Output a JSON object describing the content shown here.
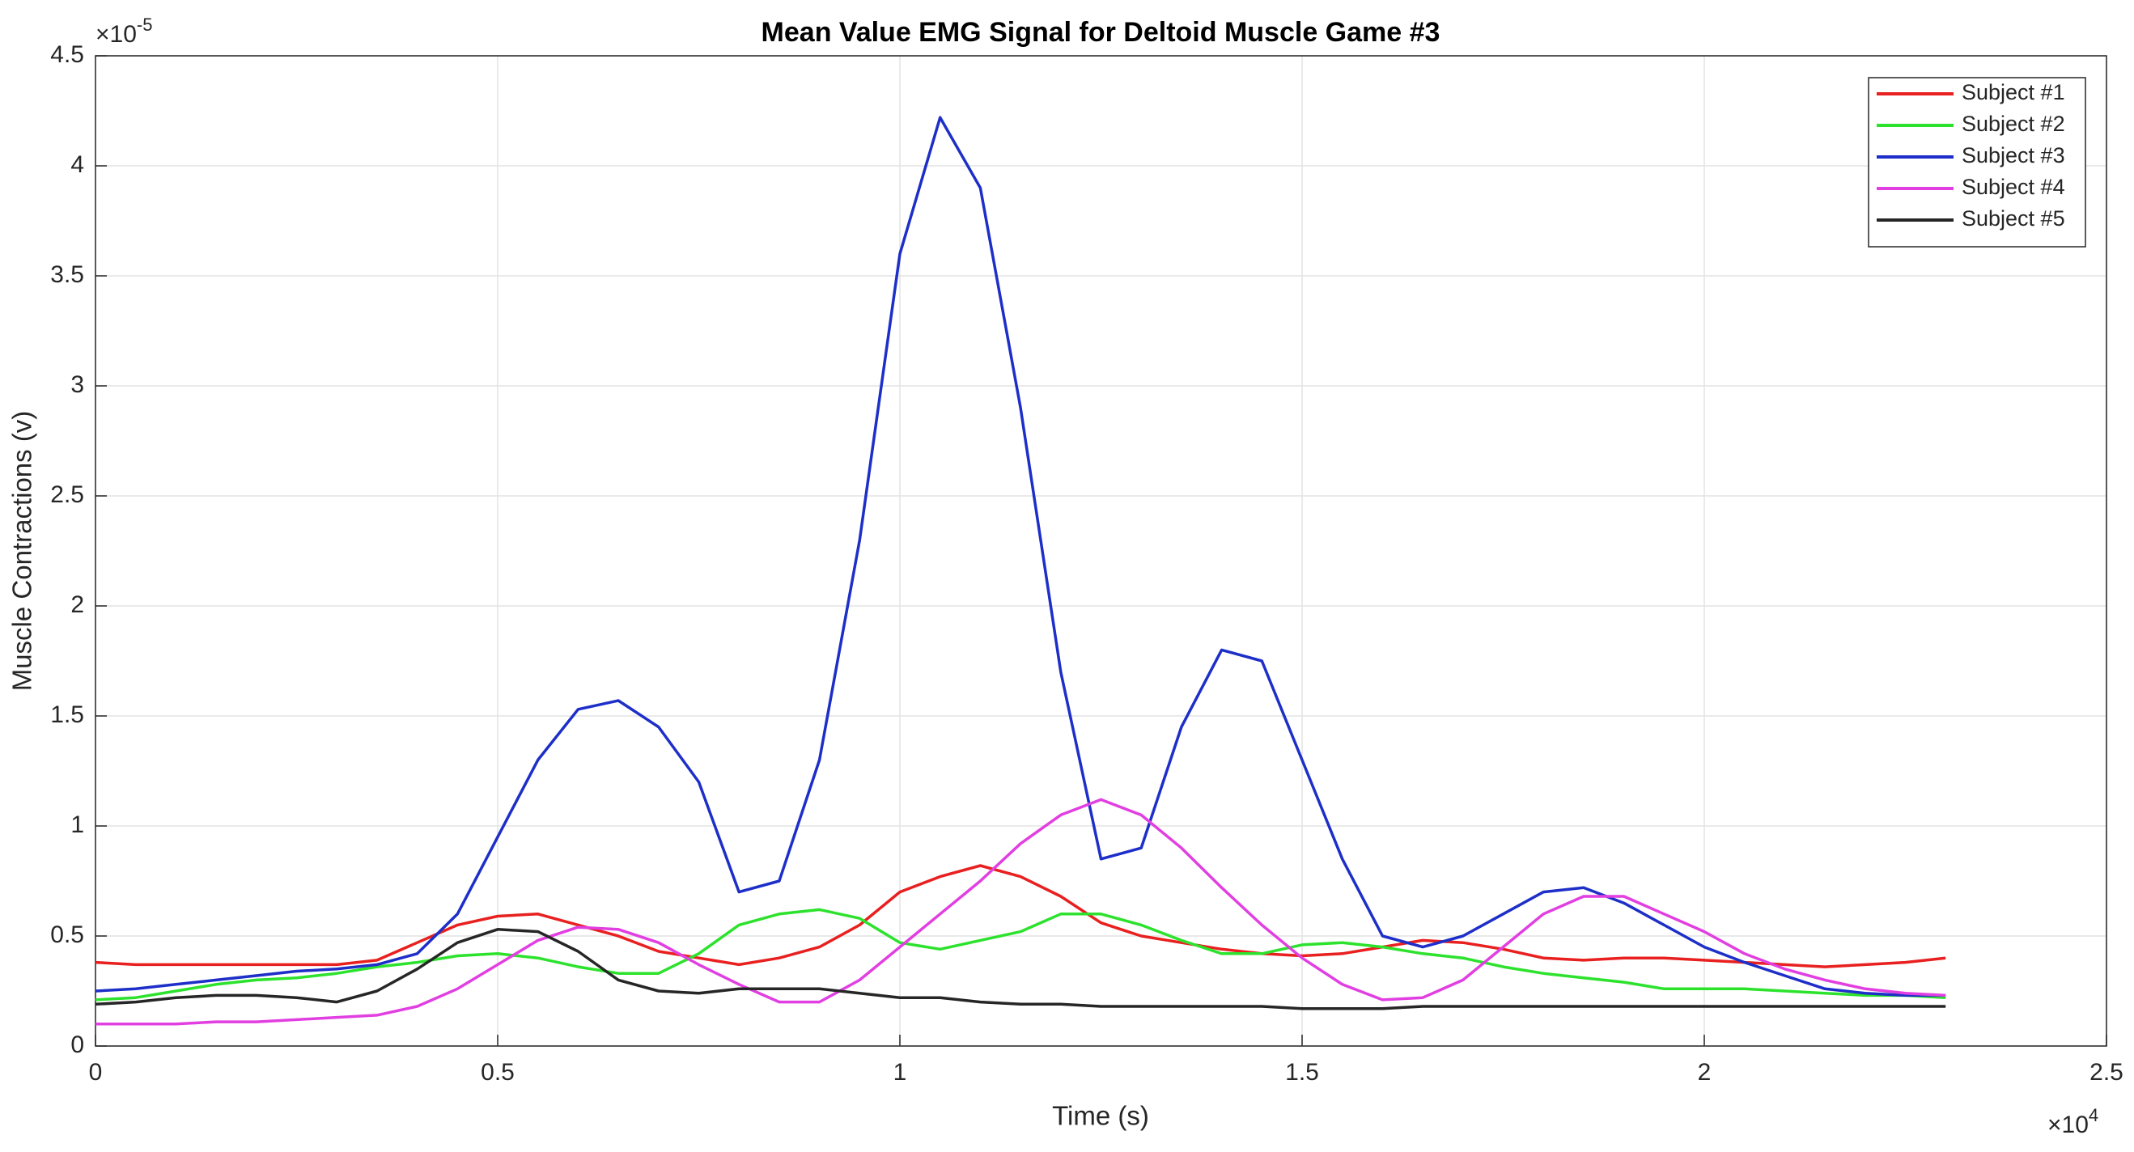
{
  "chart_data": {
    "type": "line",
    "title": "Mean Value EMG Signal for Deltoid Muscle Game #3",
    "x_label": "Time (s)",
    "y_label": "Muscle Contractions (v)",
    "x_multiplier": {
      "base": "×10",
      "exponent": "4"
    },
    "y_multiplier": {
      "base": "×10",
      "exponent": "-5"
    },
    "xlim": [
      0,
      2.5
    ],
    "ylim": [
      0,
      4.5
    ],
    "xticks": [
      0,
      0.5,
      1,
      1.5,
      2,
      2.5
    ],
    "yticks": [
      0,
      0.5,
      1,
      1.5,
      2,
      2.5,
      3,
      3.5,
      4,
      4.5
    ],
    "grid": true,
    "legend": "northeast",
    "x": [
      0,
      0.05,
      0.1,
      0.15,
      0.2,
      0.25,
      0.3,
      0.35,
      0.4,
      0.45,
      0.5,
      0.55,
      0.6,
      0.65,
      0.7,
      0.75,
      0.8,
      0.85,
      0.9,
      0.95,
      1.0,
      1.05,
      1.1,
      1.15,
      1.2,
      1.25,
      1.3,
      1.35,
      1.4,
      1.45,
      1.5,
      1.55,
      1.6,
      1.65,
      1.7,
      1.75,
      1.8,
      1.85,
      1.9,
      1.95,
      2.0,
      2.05,
      2.1,
      2.15,
      2.2,
      2.25,
      2.3
    ],
    "series": [
      {
        "name": "Subject #1",
        "color": "#e8201f",
        "values": [
          0.38,
          0.37,
          0.37,
          0.37,
          0.37,
          0.37,
          0.37,
          0.39,
          0.47,
          0.55,
          0.59,
          0.6,
          0.55,
          0.5,
          0.43,
          0.4,
          0.37,
          0.4,
          0.45,
          0.55,
          0.7,
          0.77,
          0.82,
          0.77,
          0.68,
          0.56,
          0.5,
          0.47,
          0.44,
          0.42,
          0.41,
          0.42,
          0.45,
          0.48,
          0.47,
          0.44,
          0.4,
          0.39,
          0.4,
          0.4,
          0.39,
          0.38,
          0.37,
          0.36,
          0.37,
          0.38,
          0.4
        ]
      },
      {
        "name": "Subject #2",
        "color": "#2de22d",
        "values": [
          0.21,
          0.22,
          0.25,
          0.28,
          0.3,
          0.31,
          0.33,
          0.36,
          0.38,
          0.41,
          0.42,
          0.4,
          0.36,
          0.33,
          0.33,
          0.42,
          0.55,
          0.6,
          0.62,
          0.58,
          0.47,
          0.44,
          0.48,
          0.52,
          0.6,
          0.6,
          0.55,
          0.48,
          0.42,
          0.42,
          0.46,
          0.47,
          0.45,
          0.42,
          0.4,
          0.36,
          0.33,
          0.31,
          0.29,
          0.26,
          0.26,
          0.26,
          0.25,
          0.24,
          0.23,
          0.23,
          0.22
        ]
      },
      {
        "name": "Subject #3",
        "color": "#1d2fc8",
        "values": [
          0.25,
          0.26,
          0.28,
          0.3,
          0.32,
          0.34,
          0.35,
          0.37,
          0.42,
          0.6,
          0.95,
          1.3,
          1.53,
          1.57,
          1.45,
          1.2,
          0.7,
          0.75,
          1.3,
          2.3,
          3.6,
          4.22,
          3.9,
          2.9,
          1.7,
          0.85,
          0.9,
          1.45,
          1.8,
          1.75,
          1.3,
          0.85,
          0.5,
          0.45,
          0.5,
          0.6,
          0.7,
          0.72,
          0.65,
          0.55,
          0.45,
          0.38,
          0.32,
          0.26,
          0.24,
          0.23,
          0.23
        ]
      },
      {
        "name": "Subject #4",
        "color": "#e13fe1",
        "values": [
          0.1,
          0.1,
          0.1,
          0.11,
          0.11,
          0.12,
          0.13,
          0.14,
          0.18,
          0.26,
          0.37,
          0.48,
          0.54,
          0.53,
          0.47,
          0.37,
          0.28,
          0.2,
          0.2,
          0.3,
          0.45,
          0.6,
          0.75,
          0.92,
          1.05,
          1.12,
          1.05,
          0.9,
          0.72,
          0.55,
          0.4,
          0.28,
          0.21,
          0.22,
          0.3,
          0.45,
          0.6,
          0.68,
          0.68,
          0.6,
          0.52,
          0.42,
          0.35,
          0.3,
          0.26,
          0.24,
          0.23
        ]
      },
      {
        "name": "Subject #5",
        "color": "#262626",
        "values": [
          0.19,
          0.2,
          0.22,
          0.23,
          0.23,
          0.22,
          0.2,
          0.25,
          0.35,
          0.47,
          0.53,
          0.52,
          0.43,
          0.3,
          0.25,
          0.24,
          0.26,
          0.26,
          0.26,
          0.24,
          0.22,
          0.22,
          0.2,
          0.19,
          0.19,
          0.18,
          0.18,
          0.18,
          0.18,
          0.18,
          0.17,
          0.17,
          0.17,
          0.18,
          0.18,
          0.18,
          0.18,
          0.18,
          0.18,
          0.18,
          0.18,
          0.18,
          0.18,
          0.18,
          0.18,
          0.18,
          0.18
        ]
      }
    ]
  }
}
